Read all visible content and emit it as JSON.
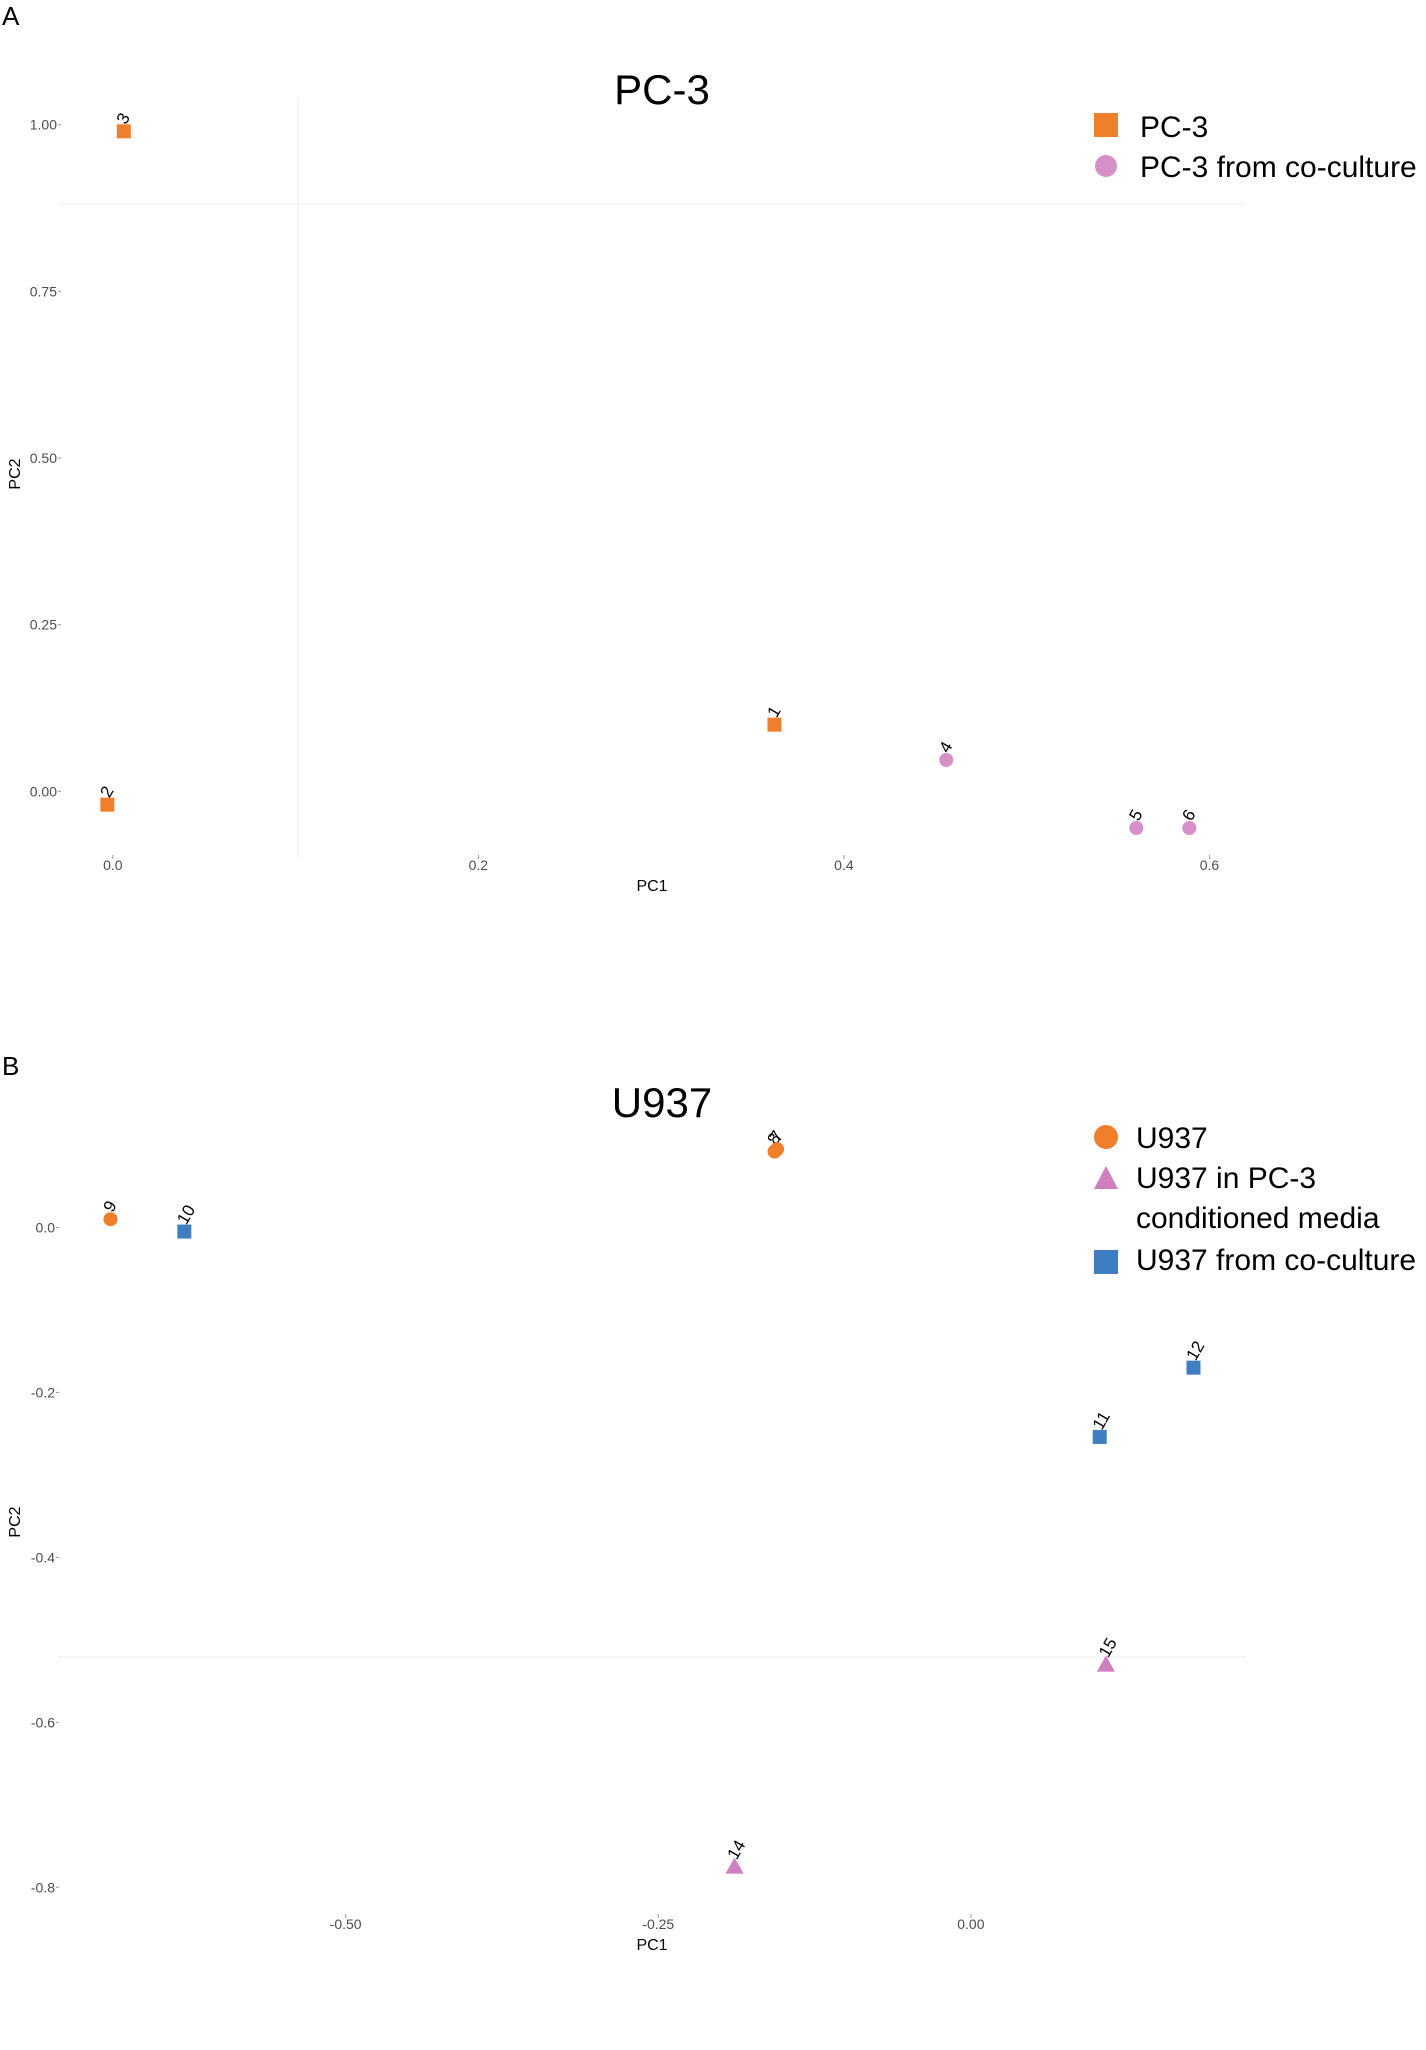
{
  "figure": {
    "panels": [
      "A",
      "B"
    ]
  },
  "chart_data": [
    {
      "type": "scatter",
      "title": "PC-3",
      "xlabel": "PC1",
      "ylabel": "PC2",
      "x_ticks": [
        "0.0",
        "0.2",
        "0.4",
        "0.6"
      ],
      "y_ticks": [
        "0.00",
        "0.25",
        "0.50",
        "0.75",
        "1.00"
      ],
      "xlim": [
        -0.03,
        0.62
      ],
      "ylim": [
        -0.1,
        1.04
      ],
      "grid": false,
      "legend_position": "top-right",
      "series": [
        {
          "name": "PC-3",
          "shape": "square",
          "color": "#f07f2b",
          "points": [
            {
              "label": "3",
              "x": 0.006,
              "y": 0.99
            },
            {
              "label": "2",
              "x": -0.003,
              "y": -0.02
            },
            {
              "label": "1",
              "x": 0.362,
              "y": 0.1
            }
          ]
        },
        {
          "name": "PC-3 from co-culture",
          "shape": "circle",
          "color": "#d78fc8",
          "points": [
            {
              "label": "4",
              "x": 0.456,
              "y": 0.047
            },
            {
              "label": "5",
              "x": 0.56,
              "y": -0.055
            },
            {
              "label": "6",
              "x": 0.589,
              "y": -0.055
            }
          ]
        }
      ]
    },
    {
      "type": "scatter",
      "title": "U937",
      "xlabel": "PC1",
      "ylabel": "PC2",
      "x_ticks": [
        "-0.50",
        "-0.25",
        "0.00"
      ],
      "y_ticks": [
        "-0.8",
        "-0.6",
        "-0.4",
        "-0.2",
        "0.0"
      ],
      "xlim": [
        -0.73,
        0.22
      ],
      "ylim": [
        -0.83,
        0.14
      ],
      "grid": false,
      "legend_position": "top-right",
      "series": [
        {
          "name": "U937",
          "shape": "circle",
          "color": "#f07f2b",
          "points": [
            {
              "label": "9",
              "x": -0.688,
              "y": 0.01
            },
            {
              "label": "8",
              "x": -0.157,
              "y": 0.092
            },
            {
              "label": "7",
              "x": -0.155,
              "y": 0.095
            }
          ]
        },
        {
          "name": "U937 in PC-3 conditioned media",
          "shape": "triangle",
          "color": "#cf7fc0",
          "points": [
            {
              "label": "14",
              "x": -0.189,
              "y": -0.775
            },
            {
              "label": "15",
              "x": 0.108,
              "y": -0.53
            }
          ]
        },
        {
          "name": "U937 from co-culture",
          "shape": "square",
          "color": "#3f7fc1",
          "points": [
            {
              "label": "10",
              "x": -0.629,
              "y": -0.005
            },
            {
              "label": "11",
              "x": 0.103,
              "y": -0.254
            },
            {
              "label": "12",
              "x": 0.178,
              "y": -0.17
            }
          ]
        }
      ]
    }
  ]
}
